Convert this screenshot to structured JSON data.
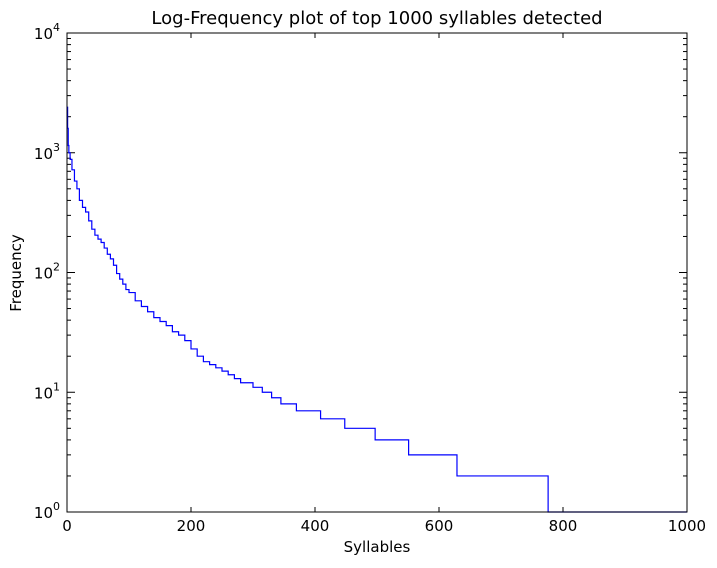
{
  "chart_data": {
    "type": "line",
    "title": "Log-Frequency plot of top 1000 syllables detected",
    "xlabel": "Syllables",
    "ylabel": "Frequency",
    "xlim": [
      0,
      1000
    ],
    "ylim": [
      1,
      10000
    ],
    "yscale": "log",
    "grid": false,
    "line_color": "#0000ff",
    "x_ticks": [
      0,
      200,
      400,
      600,
      800,
      1000
    ],
    "y_ticks": [
      {
        "base": "10",
        "exp": "0"
      },
      {
        "base": "10",
        "exp": "1"
      },
      {
        "base": "10",
        "exp": "2"
      },
      {
        "base": "10",
        "exp": "3"
      },
      {
        "base": "10",
        "exp": "4"
      }
    ],
    "series": [
      {
        "x": [
          0,
          1,
          2,
          3,
          5,
          8,
          12,
          16,
          20,
          25,
          30,
          35,
          40,
          45,
          50,
          55,
          60,
          65,
          70,
          75,
          80,
          85,
          90,
          95,
          100,
          110,
          120,
          130,
          140,
          150,
          160,
          170,
          180,
          190,
          200,
          210,
          220,
          230,
          240,
          250,
          260,
          270,
          280,
          290,
          300,
          315,
          330,
          345,
          370,
          409,
          448,
          497,
          551,
          629,
          776,
          1000
        ],
        "y": [
          2400,
          1600,
          1150,
          1000,
          880,
          720,
          580,
          500,
          400,
          350,
          320,
          270,
          230,
          205,
          190,
          178,
          160,
          142,
          130,
          115,
          98,
          88,
          80,
          72,
          68,
          58,
          52,
          47,
          42,
          39,
          36,
          32,
          30,
          27,
          23,
          20,
          18,
          17,
          16,
          15,
          14,
          13,
          12,
          12,
          11,
          10,
          9,
          8,
          7,
          6,
          5,
          4,
          3,
          2,
          1,
          1
        ]
      }
    ]
  }
}
